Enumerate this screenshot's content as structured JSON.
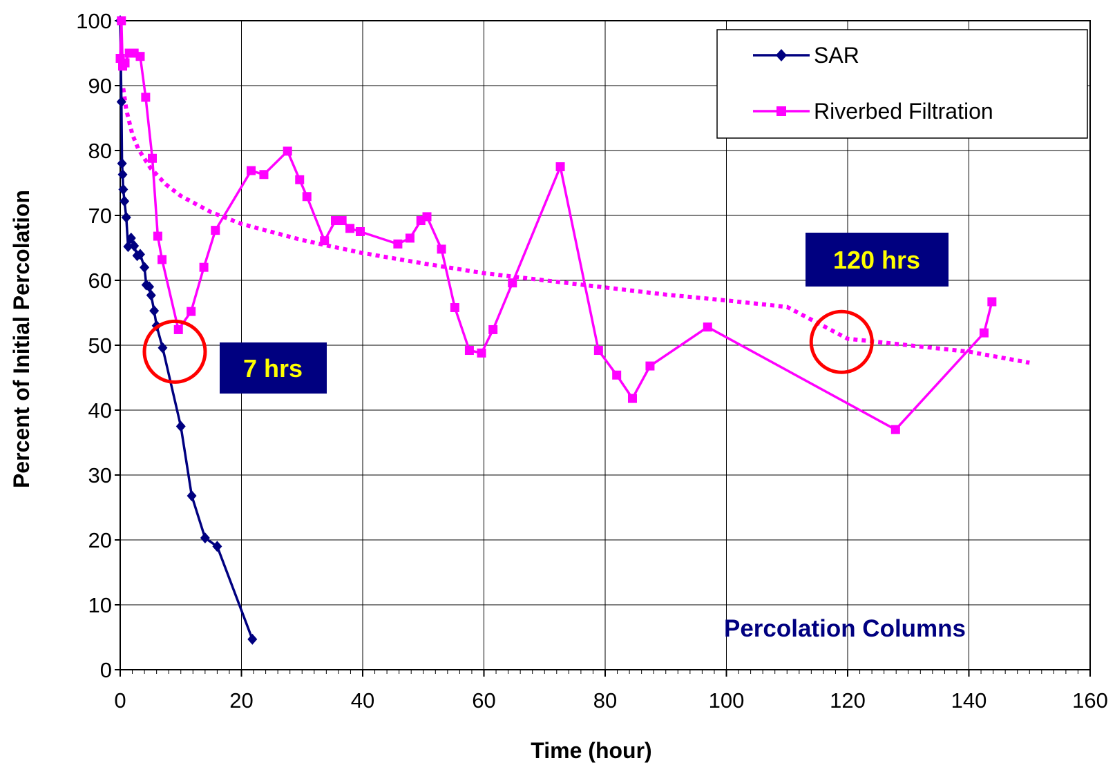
{
  "chart_data": {
    "type": "line",
    "xlabel": "Time (hour)",
    "ylabel": "Percent of Initial Percolation",
    "xlim": [
      0,
      160
    ],
    "ylim": [
      0,
      100
    ],
    "x_ticks": [
      0,
      20,
      40,
      60,
      80,
      100,
      120,
      140,
      160
    ],
    "y_ticks": [
      0,
      10,
      20,
      30,
      40,
      50,
      60,
      70,
      80,
      90,
      100
    ],
    "x_tick_labels": [
      "0",
      "20",
      "40",
      "60",
      "80",
      "100",
      "120",
      "140",
      "160"
    ],
    "y_tick_labels": [
      "0",
      "10",
      "20",
      "30",
      "40",
      "50",
      "60",
      "70",
      "80",
      "90",
      "100"
    ],
    "grid": true,
    "legend_position": "top-right",
    "series": [
      {
        "name": "SAR",
        "color": "#000080",
        "marker": "diamond",
        "x": [
          0,
          0.2,
          0.3,
          0.4,
          0.5,
          0.7,
          1.0,
          1.3,
          1.8,
          2.3,
          2.8,
          3.3,
          4.0,
          4.3,
          4.8,
          5.1,
          5.6,
          6.0,
          7.0,
          10.0,
          11.8,
          14.0,
          16.0,
          21.8
        ],
        "y": [
          100,
          87.5,
          78,
          76.3,
          74,
          72.2,
          69.7,
          65.2,
          66.5,
          65.3,
          63.8,
          64,
          62,
          59.3,
          59,
          57.7,
          55.3,
          53,
          49.6,
          37.5,
          26.8,
          20.3,
          19,
          4.7
        ]
      },
      {
        "name": "Riverbed Filtration",
        "color": "#ff00ff",
        "marker": "square",
        "x": [
          0,
          0.2,
          0.4,
          0.8,
          1.5,
          2.3,
          3.3,
          4.2,
          5.3,
          6.2,
          6.9,
          9.6,
          11.7,
          13.8,
          15.7,
          21.6,
          23.7,
          27.6,
          29.6,
          30.8,
          33.7,
          35.5,
          36.6,
          37.9,
          39.6,
          45.8,
          47.8,
          49.6,
          50.6,
          53.0,
          55.2,
          57.6,
          59.6,
          61.5,
          64.7,
          72.6,
          78.9,
          81.9,
          84.5,
          87.4,
          96.9,
          127.9,
          142.5,
          143.8
        ],
        "y": [
          94.2,
          100,
          93,
          93.5,
          95,
          95,
          94.5,
          88.2,
          78.8,
          66.8,
          63.2,
          52.4,
          55.2,
          62,
          67.7,
          76.9,
          76.3,
          79.9,
          75.5,
          72.9,
          66.1,
          69.2,
          69.2,
          68,
          67.5,
          65.6,
          66.5,
          69.2,
          69.8,
          64.8,
          55.8,
          49.2,
          48.8,
          52.4,
          59.6,
          77.5,
          49.2,
          45.4,
          41.8,
          46.8,
          52.8,
          37,
          51.9,
          56.7
        ]
      },
      {
        "type": "trendline",
        "style": "dotted",
        "color": "#ff00ff",
        "x": [
          0.5,
          1,
          2,
          3,
          5,
          7.5,
          10,
          15,
          20,
          30,
          40,
          50,
          60,
          70,
          80,
          90,
          100,
          110,
          120,
          130,
          140,
          150
        ],
        "y": [
          89.6,
          86.3,
          82.5,
          80.2,
          77.3,
          74.8,
          73,
          70.5,
          68.7,
          66.2,
          64.2,
          62.6,
          61.1,
          60,
          58.9,
          57.8,
          56.9,
          55.9,
          51,
          50,
          49,
          47.3
        ]
      }
    ],
    "annotations": [
      {
        "text": "7 hrs",
        "x": 9,
        "y": 49
      },
      {
        "text": "120 hrs",
        "x": 119,
        "y": 50.5
      },
      {
        "text": "Percolation Columns"
      }
    ]
  }
}
